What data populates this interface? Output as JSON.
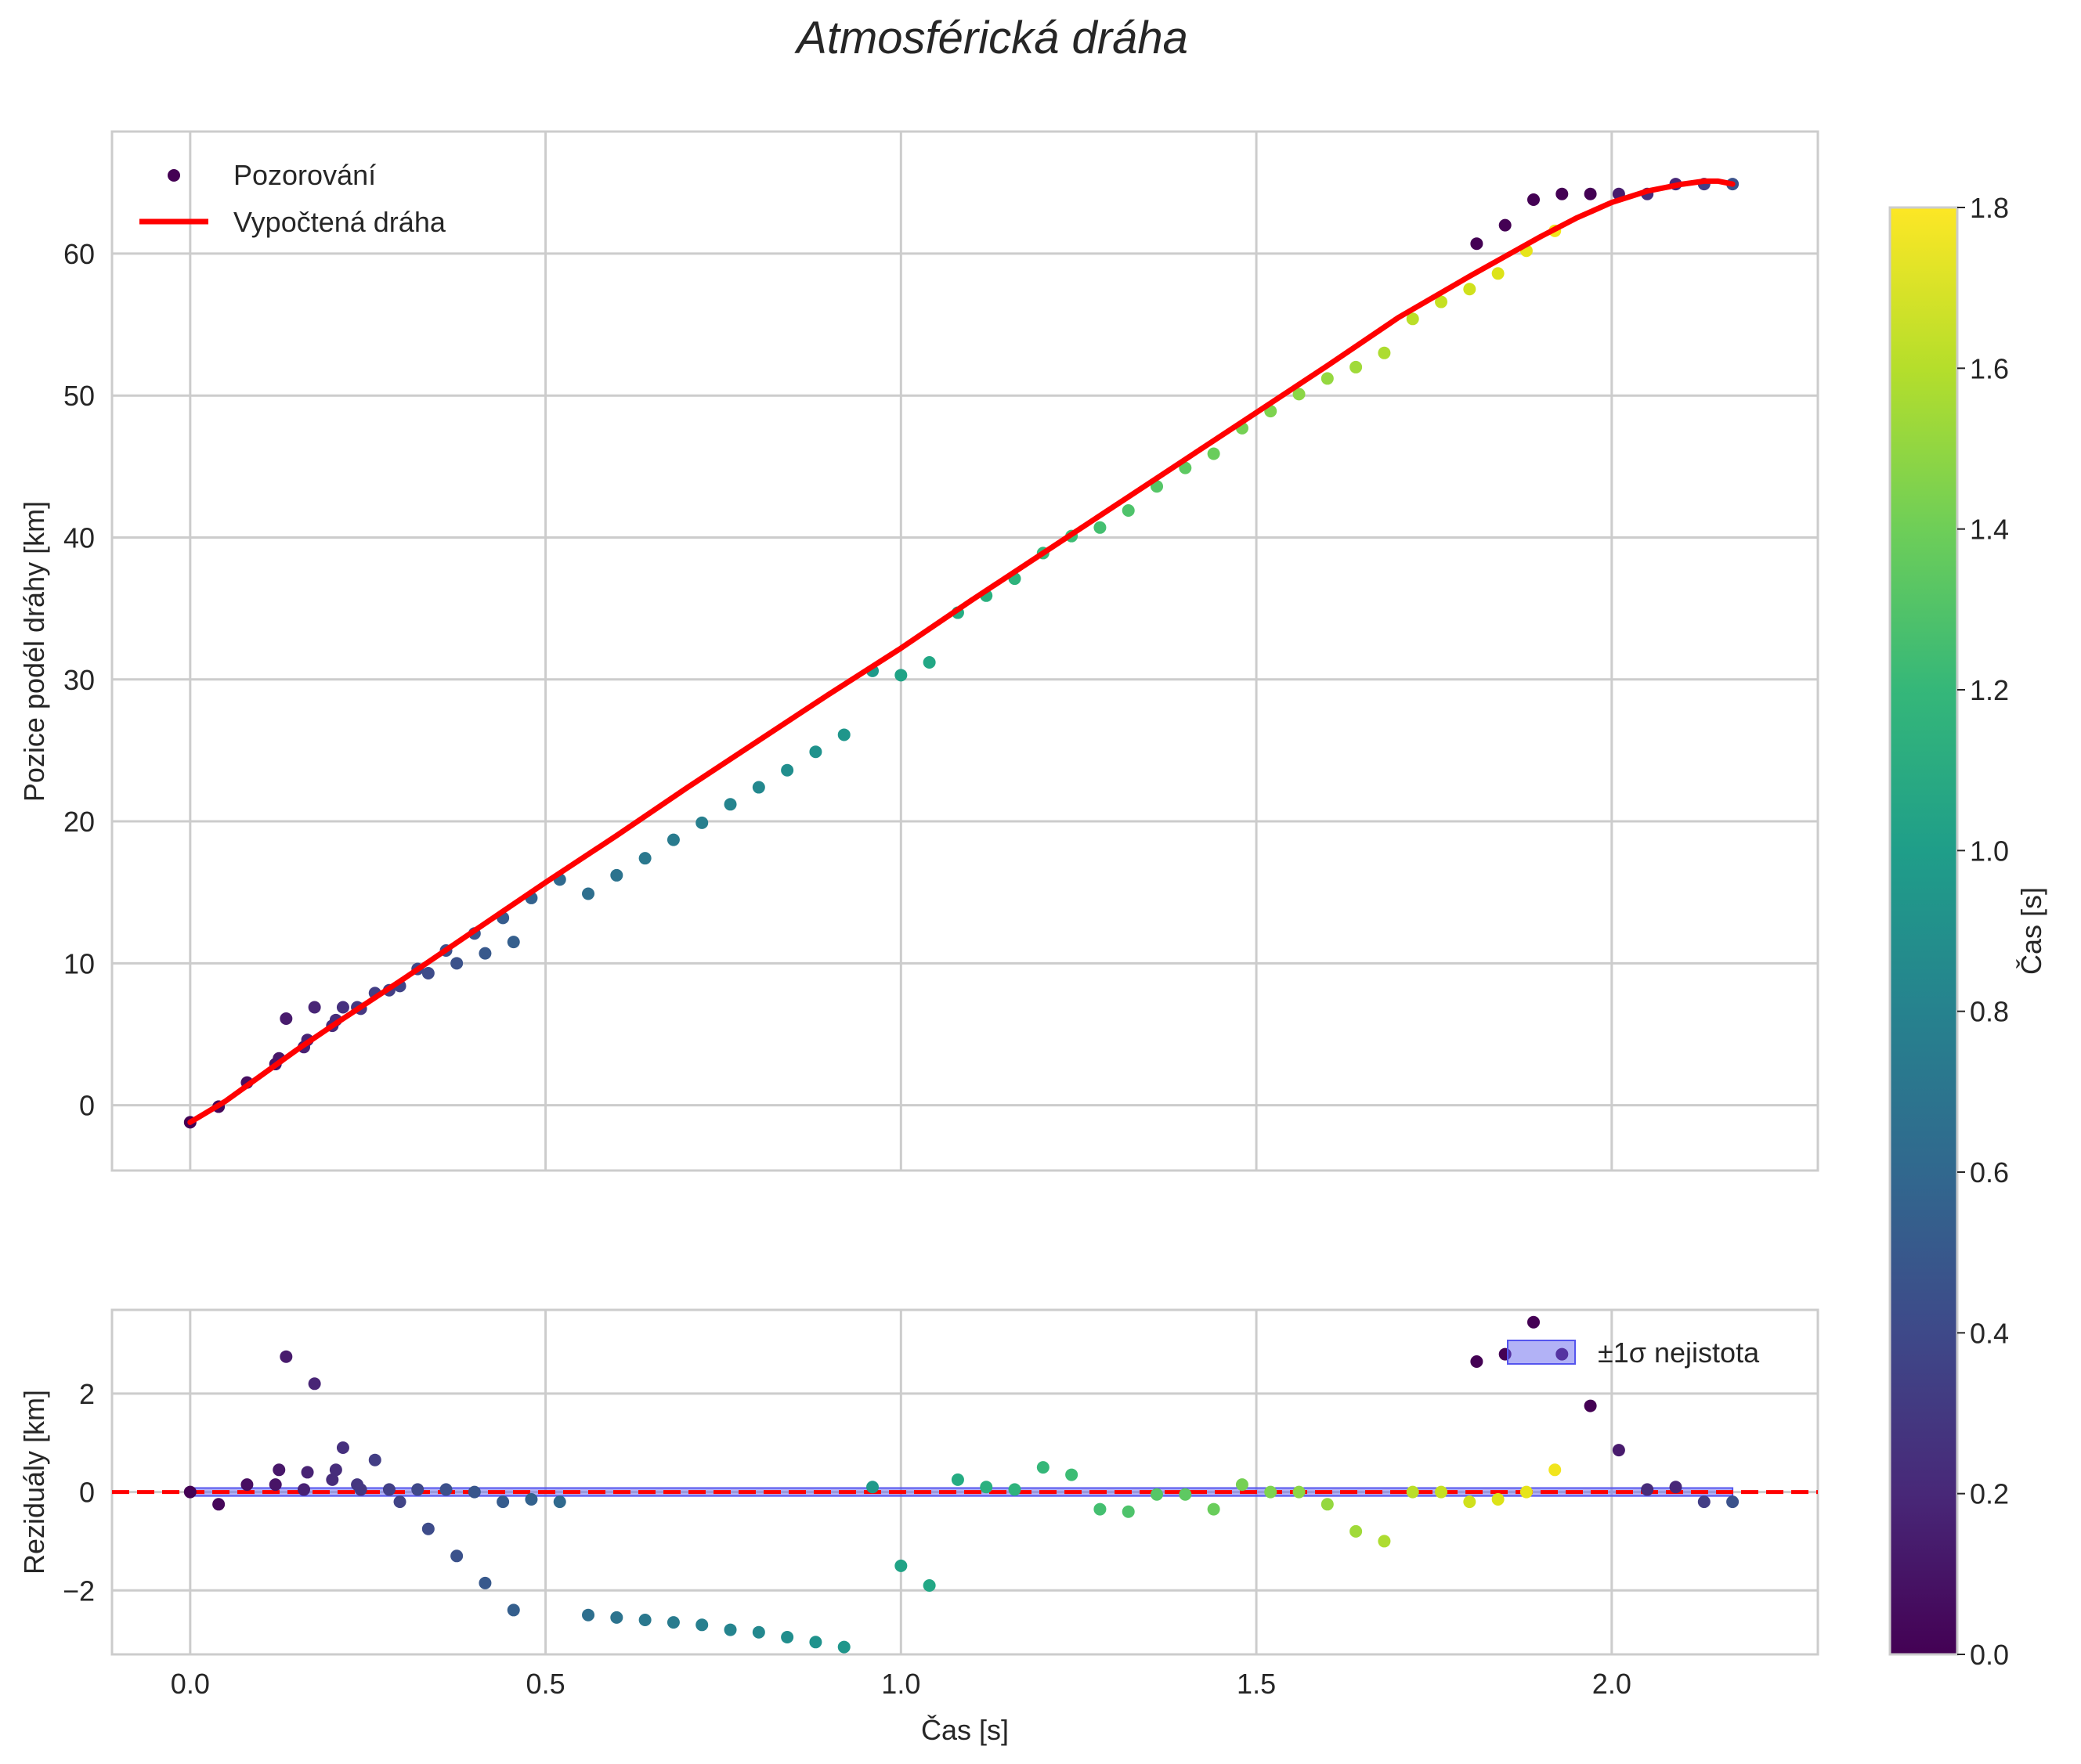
{
  "chart_data": [
    {
      "id": "main",
      "type": "scatter",
      "title": "Atmosférická dráha",
      "xlabel": "",
      "ylabel": "Pozice podél dráhy [km]",
      "xlim": [
        -0.11,
        2.29
      ],
      "ylim": [
        -4.6,
        68.6
      ],
      "xticks": [
        0.0,
        0.5,
        1.0,
        1.5,
        2.0
      ],
      "yticks": [
        0,
        10,
        20,
        30,
        40,
        50,
        60
      ],
      "ytick_labels": [
        "0",
        "10",
        "20",
        "30",
        "40",
        "50",
        "60"
      ],
      "grid": true,
      "legend": {
        "placement": "top-left",
        "entries": [
          {
            "label": "Pozorování",
            "kind": "marker",
            "color": "#440154"
          },
          {
            "label": "Vypočtená dráha",
            "kind": "line",
            "color": "#ff0000"
          }
        ]
      },
      "series": [
        {
          "name": "Pozorování",
          "kind": "scatter",
          "points": [
            [
              0.0,
              -1.2
            ],
            [
              0.04,
              -0.1
            ],
            [
              0.08,
              1.6
            ],
            [
              0.12,
              2.9
            ],
            [
              0.125,
              3.3
            ],
            [
              0.135,
              6.1
            ],
            [
              0.16,
              4.1
            ],
            [
              0.165,
              4.6
            ],
            [
              0.175,
              6.9
            ],
            [
              0.2,
              5.6
            ],
            [
              0.205,
              6.0
            ],
            [
              0.215,
              6.9
            ],
            [
              0.235,
              6.9
            ],
            [
              0.24,
              6.8
            ],
            [
              0.26,
              7.9
            ],
            [
              0.28,
              8.1
            ],
            [
              0.295,
              8.4
            ],
            [
              0.32,
              9.6
            ],
            [
              0.335,
              9.3
            ],
            [
              0.36,
              10.9
            ],
            [
              0.375,
              10.0
            ],
            [
              0.4,
              12.1
            ],
            [
              0.415,
              10.7
            ],
            [
              0.44,
              13.2
            ],
            [
              0.455,
              11.5
            ],
            [
              0.48,
              14.6
            ],
            [
              0.52,
              15.9
            ],
            [
              0.56,
              14.9
            ],
            [
              0.6,
              16.2
            ],
            [
              0.64,
              17.4
            ],
            [
              0.68,
              18.7
            ],
            [
              0.72,
              19.9
            ],
            [
              0.76,
              21.2
            ],
            [
              0.8,
              22.4
            ],
            [
              0.84,
              23.6
            ],
            [
              0.88,
              24.9
            ],
            [
              0.92,
              26.1
            ],
            [
              0.96,
              30.6
            ],
            [
              1.0,
              30.3
            ],
            [
              1.04,
              31.2
            ],
            [
              1.08,
              34.7
            ],
            [
              1.12,
              35.9
            ],
            [
              1.16,
              37.1
            ],
            [
              1.2,
              38.9
            ],
            [
              1.24,
              40.1
            ],
            [
              1.28,
              40.7
            ],
            [
              1.32,
              41.9
            ],
            [
              1.36,
              43.6
            ],
            [
              1.4,
              44.9
            ],
            [
              1.44,
              45.9
            ],
            [
              1.48,
              47.7
            ],
            [
              1.52,
              48.9
            ],
            [
              1.56,
              50.1
            ],
            [
              1.6,
              51.2
            ],
            [
              1.64,
              52.0
            ],
            [
              1.68,
              53.0
            ],
            [
              1.72,
              55.4
            ],
            [
              1.76,
              56.6
            ],
            [
              1.8,
              57.5
            ],
            [
              1.84,
              58.6
            ],
            [
              1.88,
              60.2
            ],
            [
              1.92,
              61.6
            ],
            [
              1.81,
              60.7
            ],
            [
              1.85,
              62.0
            ],
            [
              1.89,
              63.8
            ],
            [
              1.93,
              64.2
            ],
            [
              1.97,
              64.2
            ],
            [
              2.01,
              64.2
            ],
            [
              2.05,
              64.2
            ],
            [
              2.09,
              64.9
            ],
            [
              2.13,
              64.9
            ],
            [
              2.17,
              64.9
            ]
          ],
          "colors": [
            "#440154",
            "#46075a",
            "#470e61",
            "#481467",
            "#48176a",
            "#481b6d",
            "#482173",
            "#482374",
            "#482576",
            "#472c7a",
            "#472d7b",
            "#46307e",
            "#453781",
            "#453882",
            "#433e85",
            "#424086",
            "#414487",
            "#3f4889",
            "#3e4c8a",
            "#3c508b",
            "#3b528b",
            "#39568c",
            "#38598c",
            "#365c8d",
            "#355f8d",
            "#33628d",
            "#306a8e",
            "#2e6f8e",
            "#2c738e",
            "#2a788e",
            "#297b8e",
            "#277f8e",
            "#25848e",
            "#23888e",
            "#218e8d",
            "#1f928c",
            "#1f968b",
            "#1f9a8a",
            "#20a386",
            "#22a785",
            "#25ac82",
            "#2ab07f",
            "#2eb37c",
            "#35b779",
            "#3dbc74",
            "#44bf70",
            "#4ec36b",
            "#56c667",
            "#5ec962",
            "#69cd5b",
            "#75d054",
            "#7ed34f",
            "#8bd646",
            "#95d840",
            "#a0da39",
            "#addc30",
            "#bade28",
            "#c5e021",
            "#d0e11c",
            "#dde318",
            "#e7e419",
            "#f1e51d",
            "#440154",
            "#440154",
            "#440154",
            "#440154",
            "#440154",
            "#481b6d",
            "#472c7a",
            "#482878",
            "#433e85",
            "#3b528b"
          ]
        },
        {
          "name": "Vypočtená dráha",
          "kind": "line",
          "color": "#ff0000",
          "x": [
            0.0,
            0.05,
            0.1,
            0.15,
            0.2,
            0.3,
            0.4,
            0.5,
            0.6,
            0.7,
            0.8,
            0.9,
            1.0,
            1.1,
            1.2,
            1.3,
            1.4,
            1.5,
            1.6,
            1.7,
            1.8,
            1.85,
            1.9,
            1.95,
            2.0,
            2.05,
            2.1,
            2.13,
            2.15,
            2.17
          ],
          "y": [
            -1.2,
            0.3,
            2.1,
            3.9,
            5.6,
            8.9,
            12.3,
            15.7,
            19.0,
            22.4,
            25.7,
            29.0,
            32.2,
            35.6,
            38.9,
            42.2,
            45.5,
            48.8,
            52.1,
            55.5,
            58.4,
            59.8,
            61.2,
            62.5,
            63.6,
            64.4,
            64.9,
            65.1,
            65.1,
            64.9
          ]
        }
      ]
    },
    {
      "id": "residuals",
      "type": "scatter",
      "title": "",
      "xlabel": "Čas [s]",
      "ylabel": "Reziduály [km]",
      "xlim": [
        -0.11,
        2.29
      ],
      "ylim": [
        -3.3,
        3.7
      ],
      "xticks": [
        0.0,
        0.5,
        1.0,
        1.5,
        2.0
      ],
      "xtick_labels": [
        "0.0",
        "0.5",
        "1.0",
        "1.5",
        "2.0"
      ],
      "yticks": [
        -2,
        0,
        2
      ],
      "ytick_labels": [
        "−2",
        "0",
        "2"
      ],
      "grid": true,
      "zero_line": {
        "y": 0,
        "color": "#ff0000",
        "style": "dashed"
      },
      "band": {
        "label": "±1σ nejistota",
        "color": "#6666ee",
        "sigma_start": 0.08,
        "sigma_end": 0.08,
        "x_start": 0.0,
        "x_end": 2.17
      },
      "legend": {
        "placement": "top-right",
        "entries": [
          {
            "label": "±1σ nejistota",
            "kind": "band",
            "color": "#6666ee"
          }
        ]
      },
      "series": [
        {
          "name": "Reziduály",
          "kind": "scatter",
          "points": [
            [
              0.0,
              0.0
            ],
            [
              0.04,
              -0.25
            ],
            [
              0.08,
              0.15
            ],
            [
              0.12,
              0.15
            ],
            [
              0.125,
              0.45
            ],
            [
              0.135,
              2.75
            ],
            [
              0.16,
              0.05
            ],
            [
              0.165,
              0.4
            ],
            [
              0.175,
              2.2
            ],
            [
              0.2,
              0.25
            ],
            [
              0.205,
              0.45
            ],
            [
              0.215,
              0.9
            ],
            [
              0.235,
              0.15
            ],
            [
              0.24,
              0.05
            ],
            [
              0.26,
              0.65
            ],
            [
              0.28,
              0.05
            ],
            [
              0.295,
              -0.2
            ],
            [
              0.32,
              0.05
            ],
            [
              0.335,
              -0.75
            ],
            [
              0.36,
              0.05
            ],
            [
              0.375,
              -1.3
            ],
            [
              0.4,
              0.0
            ],
            [
              0.415,
              -1.85
            ],
            [
              0.44,
              -0.2
            ],
            [
              0.455,
              -2.4
            ],
            [
              0.48,
              -0.15
            ],
            [
              0.52,
              -0.2
            ],
            [
              0.56,
              -2.5
            ],
            [
              0.6,
              -2.55
            ],
            [
              0.64,
              -2.6
            ],
            [
              0.68,
              -2.65
            ],
            [
              0.72,
              -2.7
            ],
            [
              0.76,
              -2.8
            ],
            [
              0.8,
              -2.85
            ],
            [
              0.84,
              -2.95
            ],
            [
              0.88,
              -3.05
            ],
            [
              0.92,
              -3.15
            ],
            [
              0.96,
              0.1
            ],
            [
              1.0,
              -1.5
            ],
            [
              1.04,
              -1.9
            ],
            [
              1.08,
              0.25
            ],
            [
              1.12,
              0.1
            ],
            [
              1.16,
              0.05
            ],
            [
              1.2,
              0.5
            ],
            [
              1.24,
              0.35
            ],
            [
              1.28,
              -0.35
            ],
            [
              1.32,
              -0.4
            ],
            [
              1.36,
              -0.05
            ],
            [
              1.4,
              -0.05
            ],
            [
              1.44,
              -0.35
            ],
            [
              1.48,
              0.15
            ],
            [
              1.52,
              0.0
            ],
            [
              1.56,
              0.0
            ],
            [
              1.6,
              -0.25
            ],
            [
              1.64,
              -0.8
            ],
            [
              1.68,
              -1.0
            ],
            [
              1.72,
              0.0
            ],
            [
              1.76,
              0.0
            ],
            [
              1.8,
              -0.2
            ],
            [
              1.84,
              -0.15
            ],
            [
              1.88,
              0.0
            ],
            [
              1.92,
              0.45
            ],
            [
              1.81,
              2.65
            ],
            [
              1.85,
              2.8
            ],
            [
              1.89,
              3.45
            ],
            [
              1.93,
              2.8
            ],
            [
              1.97,
              1.75
            ],
            [
              2.01,
              0.85
            ],
            [
              2.05,
              0.05
            ],
            [
              2.09,
              0.1
            ],
            [
              2.13,
              -0.2
            ],
            [
              2.17,
              -0.2
            ]
          ],
          "colors": "same-as-main"
        }
      ]
    },
    {
      "id": "colorbar",
      "type": "colorbar",
      "label": "Čas [s]",
      "range": [
        0.0,
        1.8
      ],
      "ticks": [
        0.0,
        0.2,
        0.4,
        0.6,
        0.8,
        1.0,
        1.2,
        1.4,
        1.6,
        1.8
      ],
      "tick_labels": [
        "0.0",
        "0.2",
        "0.4",
        "0.6",
        "0.8",
        "1.0",
        "1.2",
        "1.4",
        "1.6",
        "1.8"
      ],
      "colormap_stops": [
        "#440154",
        "#482878",
        "#3e4989",
        "#31688e",
        "#26828e",
        "#1f9e89",
        "#35b779",
        "#6ece58",
        "#b5de2b",
        "#fde725"
      ]
    }
  ]
}
